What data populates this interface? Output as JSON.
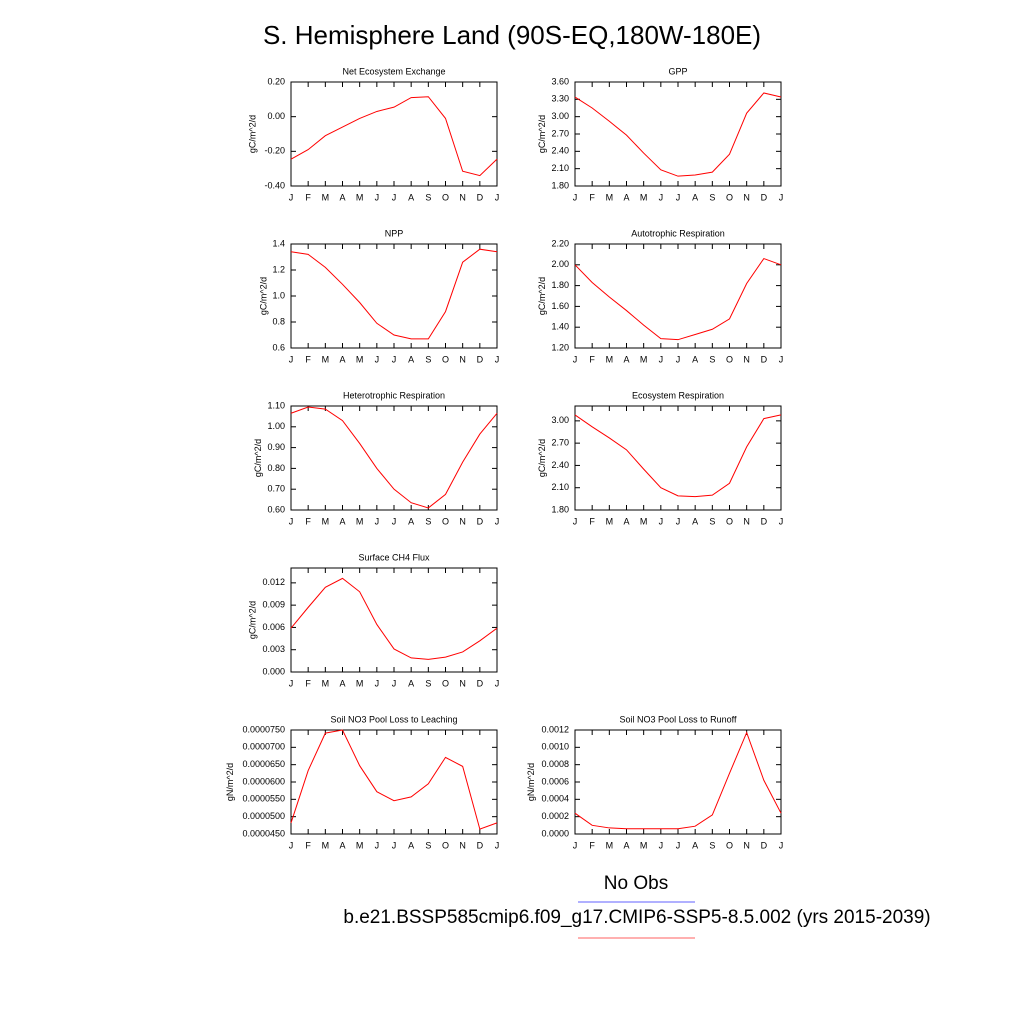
{
  "title": "S. Hemisphere Land (90S-EQ,180W-180E)",
  "legend": [
    {
      "name": "No Obs",
      "color": "#8080ff"
    },
    {
      "name": "b.e21.BSSP585cmip6.f09_g17.CMIP6-SSP5-8.5.002 (yrs 2015-2039)",
      "color": "#ff8080"
    }
  ],
  "chart_data": [
    {
      "type": "line",
      "title": "Net Ecosystem Exchange",
      "ylabel": "gC/m^2/d",
      "color": "#ff0000",
      "categories": [
        "J",
        "F",
        "M",
        "A",
        "M",
        "J",
        "J",
        "A",
        "S",
        "O",
        "N",
        "D",
        "J"
      ],
      "values": [
        -0.245,
        -0.19,
        -0.11,
        -0.06,
        -0.01,
        0.03,
        0.055,
        0.11,
        0.115,
        -0.01,
        -0.315,
        -0.34,
        -0.245
      ],
      "ylim": [
        -0.4,
        0.2
      ],
      "yticks": [
        {
          "value": -0.4,
          "label": "-0.40"
        },
        {
          "value": -0.2,
          "label": "-0.20"
        },
        {
          "value": 0,
          "label": "0.00"
        },
        {
          "value": 0.2,
          "label": "0.20"
        }
      ]
    },
    {
      "type": "line",
      "title": "GPP",
      "ylabel": "gC/m^2/d",
      "color": "#ff0000",
      "categories": [
        "J",
        "F",
        "M",
        "A",
        "M",
        "J",
        "J",
        "A",
        "S",
        "O",
        "N",
        "D",
        "J"
      ],
      "values": [
        3.34,
        3.15,
        2.92,
        2.68,
        2.37,
        2.08,
        1.97,
        1.99,
        2.04,
        2.35,
        3.06,
        3.41,
        3.34
      ],
      "ylim": [
        1.8,
        3.6
      ],
      "yticks": [
        {
          "value": 1.8,
          "label": "1.80"
        },
        {
          "value": 2.1,
          "label": "2.10"
        },
        {
          "value": 2.4,
          "label": "2.40"
        },
        {
          "value": 2.7,
          "label": "2.70"
        },
        {
          "value": 3.0,
          "label": "3.00"
        },
        {
          "value": 3.3,
          "label": "3.30"
        },
        {
          "value": 3.6,
          "label": "3.60"
        }
      ]
    },
    {
      "type": "line",
      "title": "NPP",
      "ylabel": "gC/m^2/d",
      "color": "#ff0000",
      "categories": [
        "J",
        "F",
        "M",
        "A",
        "M",
        "J",
        "J",
        "A",
        "S",
        "O",
        "N",
        "D",
        "J"
      ],
      "values": [
        1.34,
        1.32,
        1.22,
        1.09,
        0.95,
        0.79,
        0.7,
        0.67,
        0.67,
        0.88,
        1.26,
        1.36,
        1.34
      ],
      "ylim": [
        0.6,
        1.4
      ],
      "yticks": [
        0.6,
        0.8,
        {
          "value": 1.0,
          "label": "1.0"
        },
        1.2,
        1.4
      ]
    },
    {
      "type": "line",
      "title": "Autotrophic Respiration",
      "ylabel": "gC/m^2/d",
      "color": "#ff0000",
      "categories": [
        "J",
        "F",
        "M",
        "A",
        "M",
        "J",
        "J",
        "A",
        "S",
        "O",
        "N",
        "D",
        "J"
      ],
      "values": [
        2.0,
        1.83,
        1.69,
        1.56,
        1.42,
        1.29,
        1.28,
        1.33,
        1.38,
        1.48,
        1.82,
        2.06,
        2.0
      ],
      "ylim": [
        1.2,
        2.2
      ],
      "yticks": [
        {
          "value": 1.2,
          "label": "1.20"
        },
        {
          "value": 1.4,
          "label": "1.40"
        },
        {
          "value": 1.6,
          "label": "1.60"
        },
        {
          "value": 1.8,
          "label": "1.80"
        },
        {
          "value": 2.0,
          "label": "2.00"
        },
        {
          "value": 2.2,
          "label": "2.20"
        }
      ]
    },
    {
      "type": "line",
      "title": "Heterotrophic Respiration",
      "ylabel": "gC/m^2/d",
      "color": "#ff0000",
      "categories": [
        "J",
        "F",
        "M",
        "A",
        "M",
        "J",
        "J",
        "A",
        "S",
        "O",
        "N",
        "D",
        "J"
      ],
      "values": [
        1.065,
        1.095,
        1.085,
        1.03,
        0.92,
        0.8,
        0.7,
        0.635,
        0.61,
        0.675,
        0.83,
        0.965,
        1.065
      ],
      "ylim": [
        0.6,
        1.1
      ],
      "yticks": [
        {
          "value": 0.6,
          "label": "0.60"
        },
        {
          "value": 0.7,
          "label": "0.70"
        },
        {
          "value": 0.8,
          "label": "0.80"
        },
        {
          "value": 0.9,
          "label": "0.90"
        },
        {
          "value": 1.0,
          "label": "1.00"
        },
        {
          "value": 1.1,
          "label": "1.10"
        }
      ]
    },
    {
      "type": "line",
      "title": "Ecosystem Respiration",
      "ylabel": "gC/m^2/d",
      "color": "#ff0000",
      "categories": [
        "J",
        "F",
        "M",
        "A",
        "M",
        "J",
        "J",
        "A",
        "S",
        "O",
        "N",
        "D",
        "J"
      ],
      "values": [
        3.08,
        2.92,
        2.77,
        2.61,
        2.35,
        2.1,
        1.99,
        1.98,
        2.0,
        2.16,
        2.65,
        3.03,
        3.08
      ],
      "ylim": [
        1.8,
        3.2
      ],
      "yticks": [
        {
          "value": 1.8,
          "label": "1.80"
        },
        {
          "value": 2.1,
          "label": "2.10"
        },
        {
          "value": 2.4,
          "label": "2.40"
        },
        {
          "value": 2.7,
          "label": "2.70"
        },
        {
          "value": 3.0,
          "label": "3.00"
        }
      ]
    },
    {
      "type": "line",
      "title": "Surface CH4 Flux",
      "ylabel": "gC/m^2/d",
      "color": "#ff0000",
      "categories": [
        "J",
        "F",
        "M",
        "A",
        "M",
        "J",
        "J",
        "A",
        "S",
        "O",
        "N",
        "D",
        "J"
      ],
      "values": [
        0.0059,
        0.0087,
        0.0114,
        0.0126,
        0.0108,
        0.0064,
        0.0031,
        0.0019,
        0.0017,
        0.002,
        0.0027,
        0.0042,
        0.0059
      ],
      "ylim": [
        0,
        0.014
      ],
      "yticks": [
        {
          "value": 0,
          "label": "0.000"
        },
        {
          "value": 0.003,
          "label": "0.003"
        },
        {
          "value": 0.006,
          "label": "0.006"
        },
        {
          "value": 0.009,
          "label": "0.009"
        },
        {
          "value": 0.012,
          "label": "0.012"
        }
      ]
    },
    {
      "type": "line",
      "title": "Soil NO3 Pool Loss to Leaching",
      "ylabel": "gN/m^2/d",
      "color": "#ff0000",
      "categories": [
        "J",
        "F",
        "M",
        "A",
        "M",
        "J",
        "J",
        "A",
        "S",
        "O",
        "N",
        "D",
        "J"
      ],
      "values": [
        4.82e-05,
        6.33e-05,
        7.41e-05,
        7.5e-05,
        6.47e-05,
        5.72e-05,
        5.46e-05,
        5.57e-05,
        5.95e-05,
        6.71e-05,
        6.45e-05,
        4.64e-05,
        4.82e-05
      ],
      "ylim": [
        4.5e-05,
        7.5e-05
      ],
      "yticks": [
        {
          "value": 4.5e-05,
          "label": "0.0000450"
        },
        {
          "value": 5e-05,
          "label": "0.0000500"
        },
        {
          "value": 5.5e-05,
          "label": "0.0000550"
        },
        {
          "value": 6e-05,
          "label": "0.0000600"
        },
        {
          "value": 6.5e-05,
          "label": "0.0000650"
        },
        {
          "value": 7e-05,
          "label": "0.0000700"
        },
        {
          "value": 7.5e-05,
          "label": "0.0000750"
        }
      ]
    },
    {
      "type": "line",
      "title": "Soil NO3 Pool Loss to Runoff",
      "ylabel": "gN/m^2/d",
      "color": "#ff0000",
      "categories": [
        "J",
        "F",
        "M",
        "A",
        "M",
        "J",
        "J",
        "A",
        "S",
        "O",
        "N",
        "D",
        "J"
      ],
      "values": [
        0.00024,
        0.0001,
        7e-05,
        6e-05,
        6e-05,
        6e-05,
        6e-05,
        9e-05,
        0.00022,
        0.0007,
        0.00117,
        0.00062,
        0.00024
      ],
      "ylim": [
        0,
        0.0012
      ],
      "yticks": [
        {
          "value": 0,
          "label": "0.0000"
        },
        {
          "value": 0.0002,
          "label": "0.0002"
        },
        {
          "value": 0.0004,
          "label": "0.0004"
        },
        {
          "value": 0.0006,
          "label": "0.0006"
        },
        {
          "value": 0.0008,
          "label": "0.0008"
        },
        {
          "value": 0.001,
          "label": "0.0010"
        },
        {
          "value": 0.0012,
          "label": "0.0012"
        }
      ]
    }
  ]
}
